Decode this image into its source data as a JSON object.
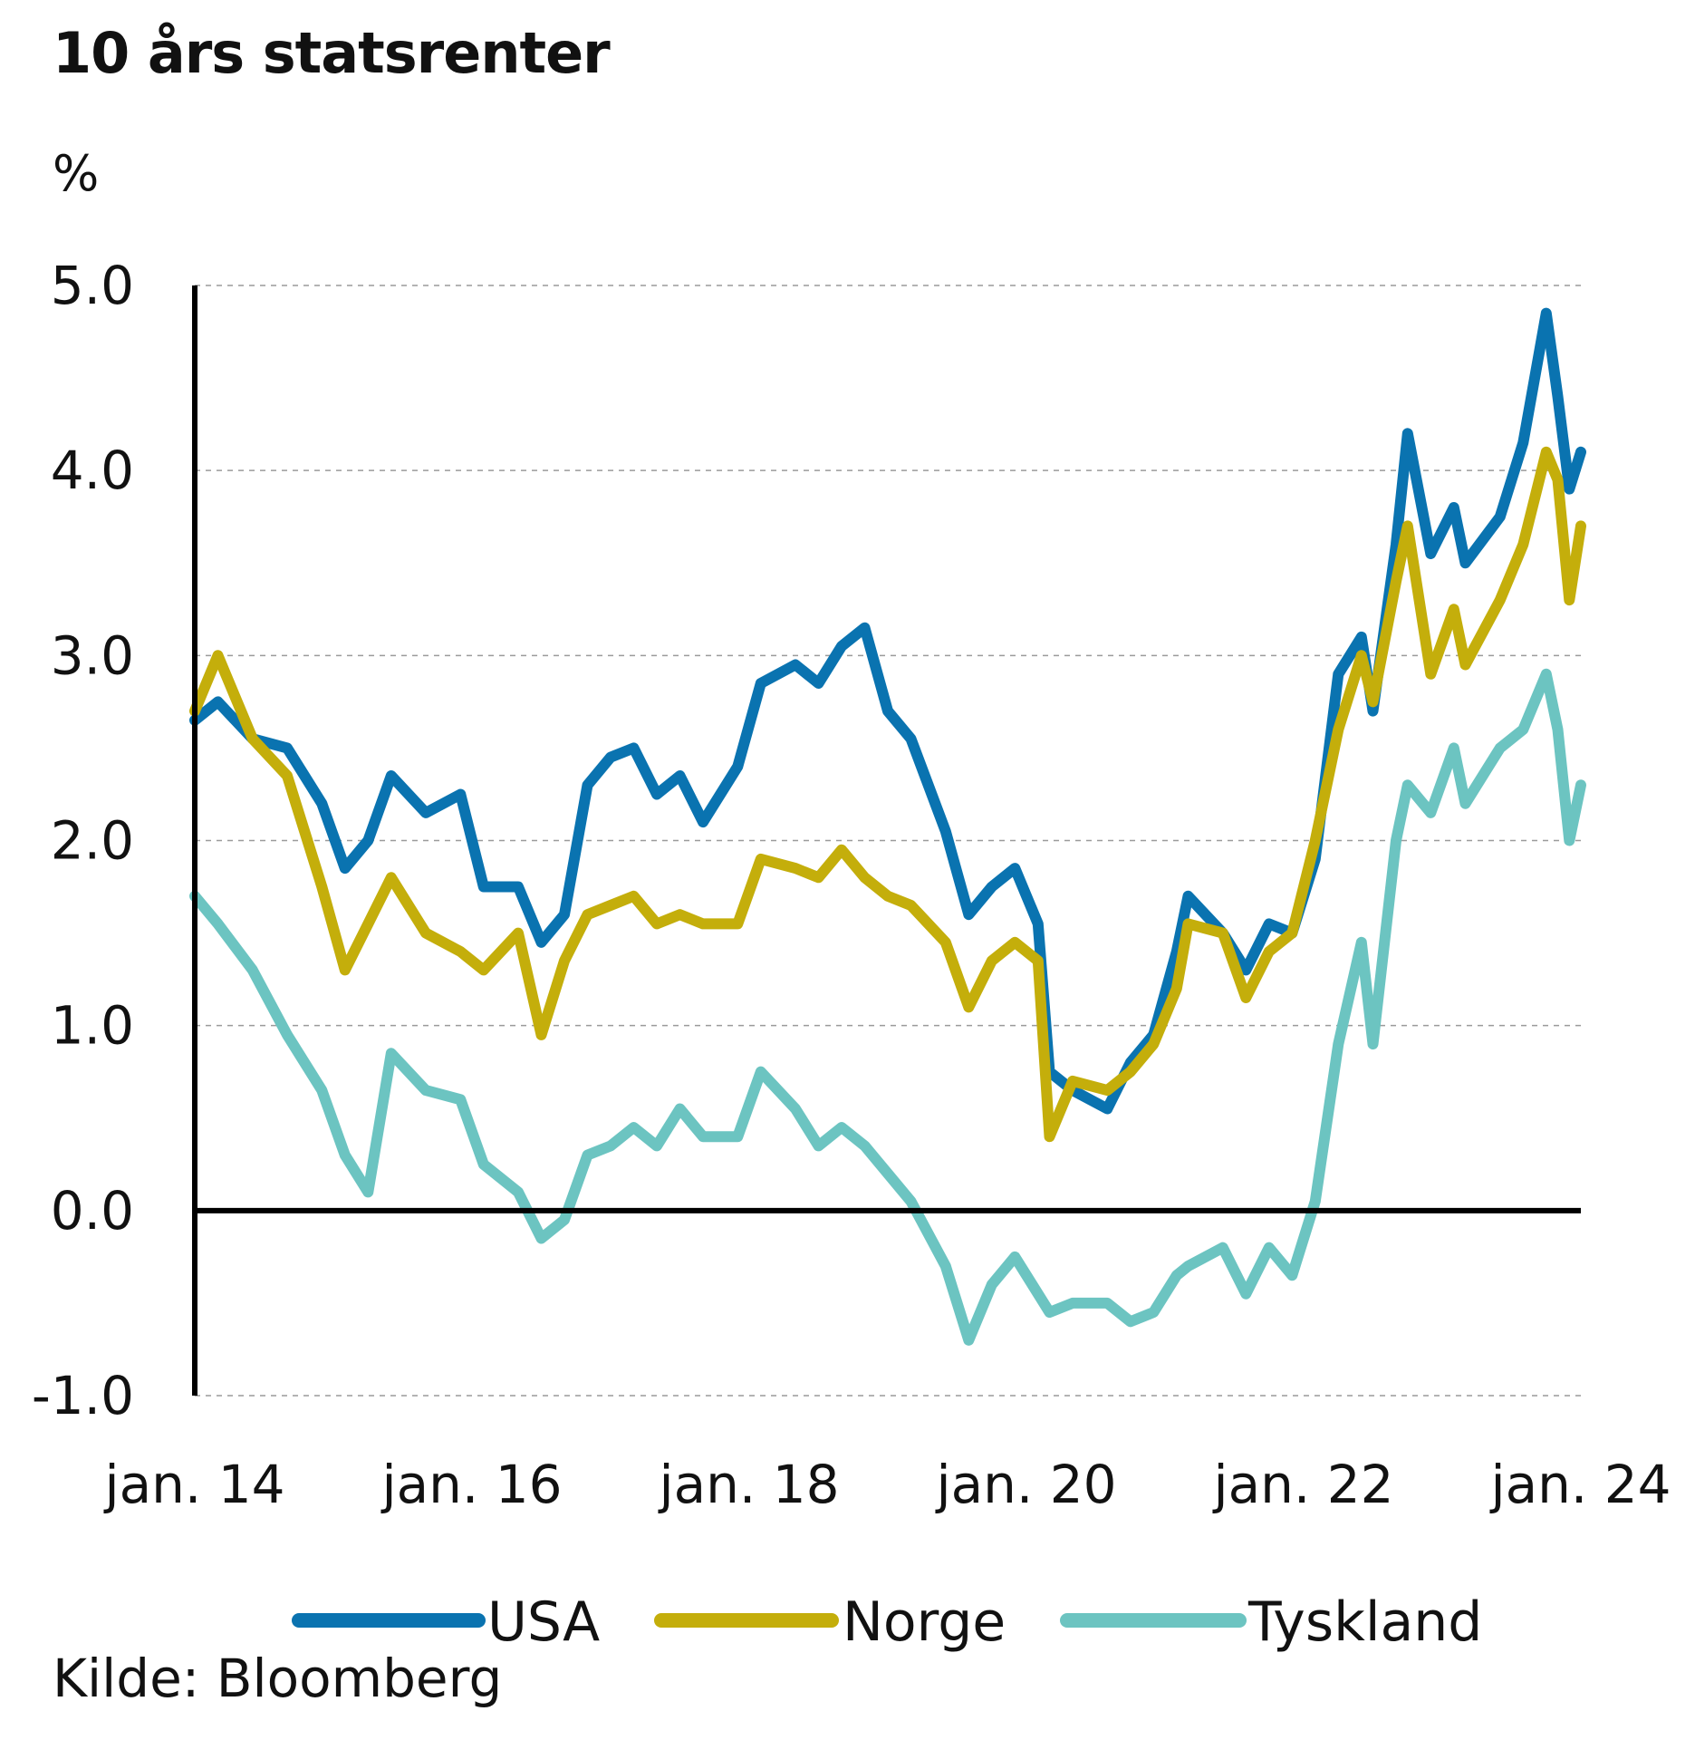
{
  "chart_data": {
    "type": "line",
    "title": "10 års statsrenter",
    "ylabel": "%",
    "source": "Kilde: Bloomberg",
    "ylim": [
      -1.0,
      5.0
    ],
    "yticks": [
      -1.0,
      0.0,
      1.0,
      2.0,
      3.0,
      4.0,
      5.0
    ],
    "ytick_labels": [
      "-1.0",
      "0.0",
      "1.0",
      "2.0",
      "3.0",
      "4.0",
      "5.0"
    ],
    "xlim": [
      "2014-01",
      "2024-01"
    ],
    "xtick_dates": [
      "2014-01",
      "2016-01",
      "2018-01",
      "2020-01",
      "2022-01",
      "2024-01"
    ],
    "xtick_labels": [
      "jan. 14",
      "jan. 16",
      "jan. 18",
      "jan. 20",
      "jan. 22",
      "jan. 24"
    ],
    "grid": true,
    "legend_position": "bottom",
    "series": [
      {
        "name": "USA",
        "color": "#0a73b0",
        "x": [
          "2014-01",
          "2014-03",
          "2014-06",
          "2014-09",
          "2014-12",
          "2015-02",
          "2015-04",
          "2015-06",
          "2015-09",
          "2015-12",
          "2016-02",
          "2016-05",
          "2016-07",
          "2016-09",
          "2016-11",
          "2017-01",
          "2017-03",
          "2017-05",
          "2017-07",
          "2017-09",
          "2017-12",
          "2018-02",
          "2018-05",
          "2018-07",
          "2018-09",
          "2018-11",
          "2019-01",
          "2019-03",
          "2019-06",
          "2019-08",
          "2019-10",
          "2019-12",
          "2020-02",
          "2020-03",
          "2020-05",
          "2020-08",
          "2020-10",
          "2020-12",
          "2021-02",
          "2021-03",
          "2021-06",
          "2021-08",
          "2021-10",
          "2021-12",
          "2022-02",
          "2022-04",
          "2022-06",
          "2022-07",
          "2022-09",
          "2022-10",
          "2022-12",
          "2023-02",
          "2023-03",
          "2023-06",
          "2023-08",
          "2023-10",
          "2023-11",
          "2023-12",
          "2024-01"
        ],
        "values": [
          2.65,
          2.75,
          2.55,
          2.5,
          2.2,
          1.85,
          2.0,
          2.35,
          2.15,
          2.25,
          1.75,
          1.75,
          1.45,
          1.6,
          2.3,
          2.45,
          2.5,
          2.25,
          2.35,
          2.1,
          2.4,
          2.85,
          2.95,
          2.85,
          3.05,
          3.15,
          2.7,
          2.55,
          2.05,
          1.6,
          1.75,
          1.85,
          1.55,
          0.75,
          0.65,
          0.55,
          0.8,
          0.95,
          1.4,
          1.7,
          1.5,
          1.3,
          1.55,
          1.5,
          1.9,
          2.9,
          3.1,
          2.7,
          3.6,
          4.2,
          3.55,
          3.8,
          3.5,
          3.75,
          4.15,
          4.85,
          4.4,
          3.9,
          4.1
        ]
      },
      {
        "name": "Norge",
        "color": "#c4ae0b",
        "x": [
          "2014-01",
          "2014-03",
          "2014-06",
          "2014-09",
          "2014-12",
          "2015-02",
          "2015-04",
          "2015-06",
          "2015-09",
          "2015-12",
          "2016-02",
          "2016-05",
          "2016-07",
          "2016-09",
          "2016-11",
          "2017-01",
          "2017-03",
          "2017-05",
          "2017-07",
          "2017-09",
          "2017-12",
          "2018-02",
          "2018-05",
          "2018-07",
          "2018-09",
          "2018-11",
          "2019-01",
          "2019-03",
          "2019-06",
          "2019-08",
          "2019-10",
          "2019-12",
          "2020-02",
          "2020-03",
          "2020-05",
          "2020-08",
          "2020-10",
          "2020-12",
          "2021-02",
          "2021-03",
          "2021-06",
          "2021-08",
          "2021-10",
          "2021-12",
          "2022-02",
          "2022-04",
          "2022-06",
          "2022-07",
          "2022-09",
          "2022-10",
          "2022-12",
          "2023-02",
          "2023-03",
          "2023-06",
          "2023-08",
          "2023-10",
          "2023-11",
          "2023-12",
          "2024-01"
        ],
        "values": [
          2.7,
          3.0,
          2.55,
          2.35,
          1.75,
          1.3,
          1.55,
          1.8,
          1.5,
          1.4,
          1.3,
          1.5,
          0.95,
          1.35,
          1.6,
          1.65,
          1.7,
          1.55,
          1.6,
          1.55,
          1.55,
          1.9,
          1.85,
          1.8,
          1.95,
          1.8,
          1.7,
          1.65,
          1.45,
          1.1,
          1.35,
          1.45,
          1.35,
          0.4,
          0.7,
          0.65,
          0.75,
          0.9,
          1.2,
          1.55,
          1.5,
          1.15,
          1.4,
          1.5,
          2.0,
          2.6,
          3.0,
          2.75,
          3.4,
          3.7,
          2.9,
          3.25,
          2.95,
          3.3,
          3.6,
          4.1,
          3.95,
          3.3,
          3.7
        ]
      },
      {
        "name": "Tyskland",
        "color": "#6cc4c1",
        "x": [
          "2014-01",
          "2014-03",
          "2014-06",
          "2014-09",
          "2014-12",
          "2015-02",
          "2015-04",
          "2015-06",
          "2015-09",
          "2015-12",
          "2016-02",
          "2016-05",
          "2016-07",
          "2016-09",
          "2016-11",
          "2017-01",
          "2017-03",
          "2017-05",
          "2017-07",
          "2017-09",
          "2017-12",
          "2018-02",
          "2018-05",
          "2018-07",
          "2018-09",
          "2018-11",
          "2019-01",
          "2019-03",
          "2019-06",
          "2019-08",
          "2019-10",
          "2019-12",
          "2020-02",
          "2020-03",
          "2020-05",
          "2020-08",
          "2020-10",
          "2020-12",
          "2021-02",
          "2021-03",
          "2021-06",
          "2021-08",
          "2021-10",
          "2021-12",
          "2022-02",
          "2022-04",
          "2022-06",
          "2022-07",
          "2022-09",
          "2022-10",
          "2022-12",
          "2023-02",
          "2023-03",
          "2023-06",
          "2023-08",
          "2023-10",
          "2023-11",
          "2023-12",
          "2024-01"
        ],
        "values": [
          1.7,
          1.55,
          1.3,
          0.95,
          0.65,
          0.3,
          0.1,
          0.85,
          0.65,
          0.6,
          0.25,
          0.1,
          -0.15,
          -0.05,
          0.3,
          0.35,
          0.45,
          0.35,
          0.55,
          0.4,
          0.4,
          0.75,
          0.55,
          0.35,
          0.45,
          0.35,
          0.2,
          0.05,
          -0.3,
          -0.7,
          -0.4,
          -0.25,
          -0.45,
          -0.55,
          -0.5,
          -0.5,
          -0.6,
          -0.55,
          -0.35,
          -0.3,
          -0.2,
          -0.45,
          -0.2,
          -0.35,
          0.05,
          0.9,
          1.45,
          0.9,
          2.0,
          2.3,
          2.15,
          2.5,
          2.2,
          2.5,
          2.6,
          2.9,
          2.6,
          2.0,
          2.3
        ]
      }
    ]
  }
}
